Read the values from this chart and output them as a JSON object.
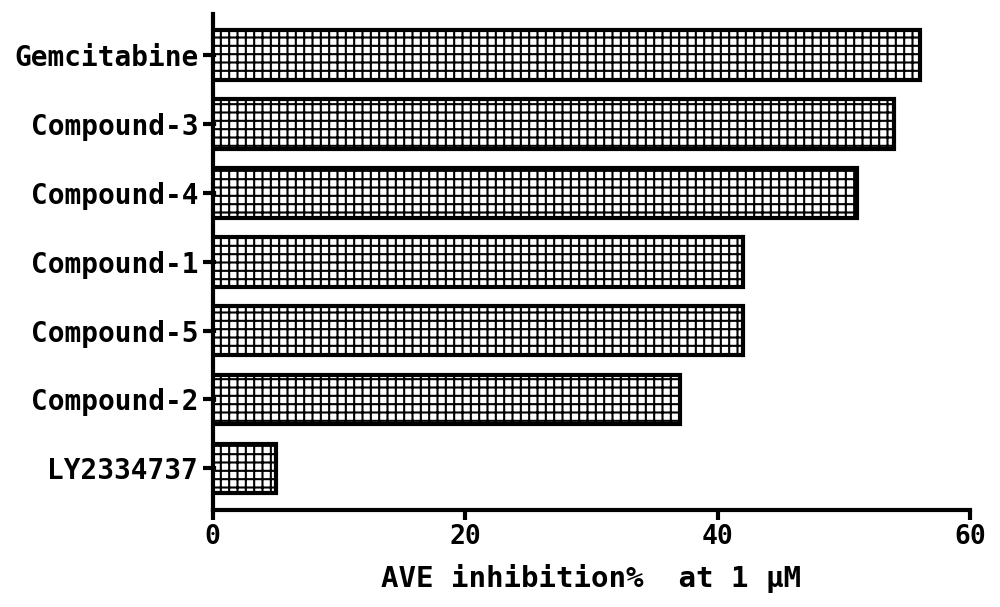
{
  "categories": [
    "LY2334737",
    "Compound-2",
    "Compound-5",
    "Compound-1",
    "Compound-4",
    "Compound-3",
    "Gemcitabine"
  ],
  "values": [
    5,
    37,
    42,
    42,
    51,
    54,
    56
  ],
  "bar_facecolor": "white",
  "bar_edgecolor": "#000000",
  "background_color": "#ffffff",
  "xlabel": "AVE inhibition%  at 1 μM",
  "xlim": [
    0,
    60
  ],
  "xticks": [
    0,
    20,
    40,
    60
  ],
  "xlabel_fontsize": 21,
  "tick_fontsize": 19,
  "ytick_fontsize": 20,
  "bar_height": 0.72,
  "linewidth": 3.0,
  "hatch_linewidth": 1.5
}
